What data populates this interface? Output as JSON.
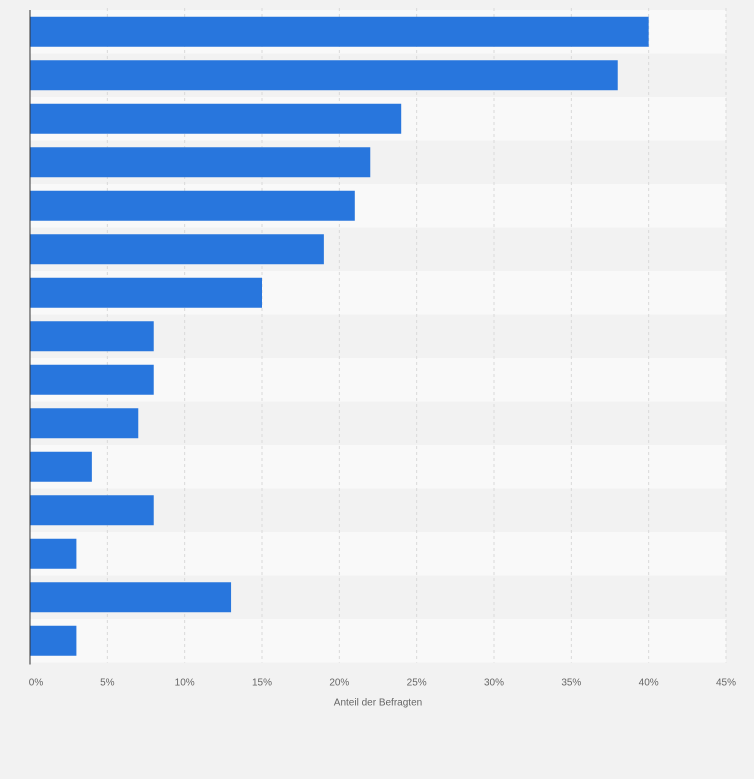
{
  "colors": {
    "background": "#f2f2f2",
    "band_light": "#f9f9f9",
    "band_dark": "#f2f2f2",
    "bar": "#2876dd",
    "grid": "#d9d9d9",
    "axis": "#333333",
    "text": "#666666"
  },
  "chart_data": {
    "type": "bar",
    "orientation": "horizontal",
    "categories": [
      "",
      "",
      "",
      "",
      "",
      "",
      "",
      "",
      "",
      "",
      "",
      "",
      "",
      "",
      ""
    ],
    "values": [
      40,
      38,
      24,
      22,
      21,
      19,
      15,
      8,
      8,
      7,
      4,
      8,
      3,
      13,
      3
    ],
    "xlabel": "Anteil der Befragten",
    "ylabel": "",
    "xlim": [
      0,
      45
    ],
    "x_ticks": [
      0,
      5,
      10,
      15,
      20,
      25,
      30,
      35,
      40,
      45
    ],
    "x_tick_labels": [
      "0%",
      "5%",
      "10%",
      "15%",
      "20%",
      "25%",
      "30%",
      "35%",
      "40%",
      "45%"
    ],
    "grid": true,
    "grid_style": "dashed-vertical",
    "legend": "none"
  }
}
